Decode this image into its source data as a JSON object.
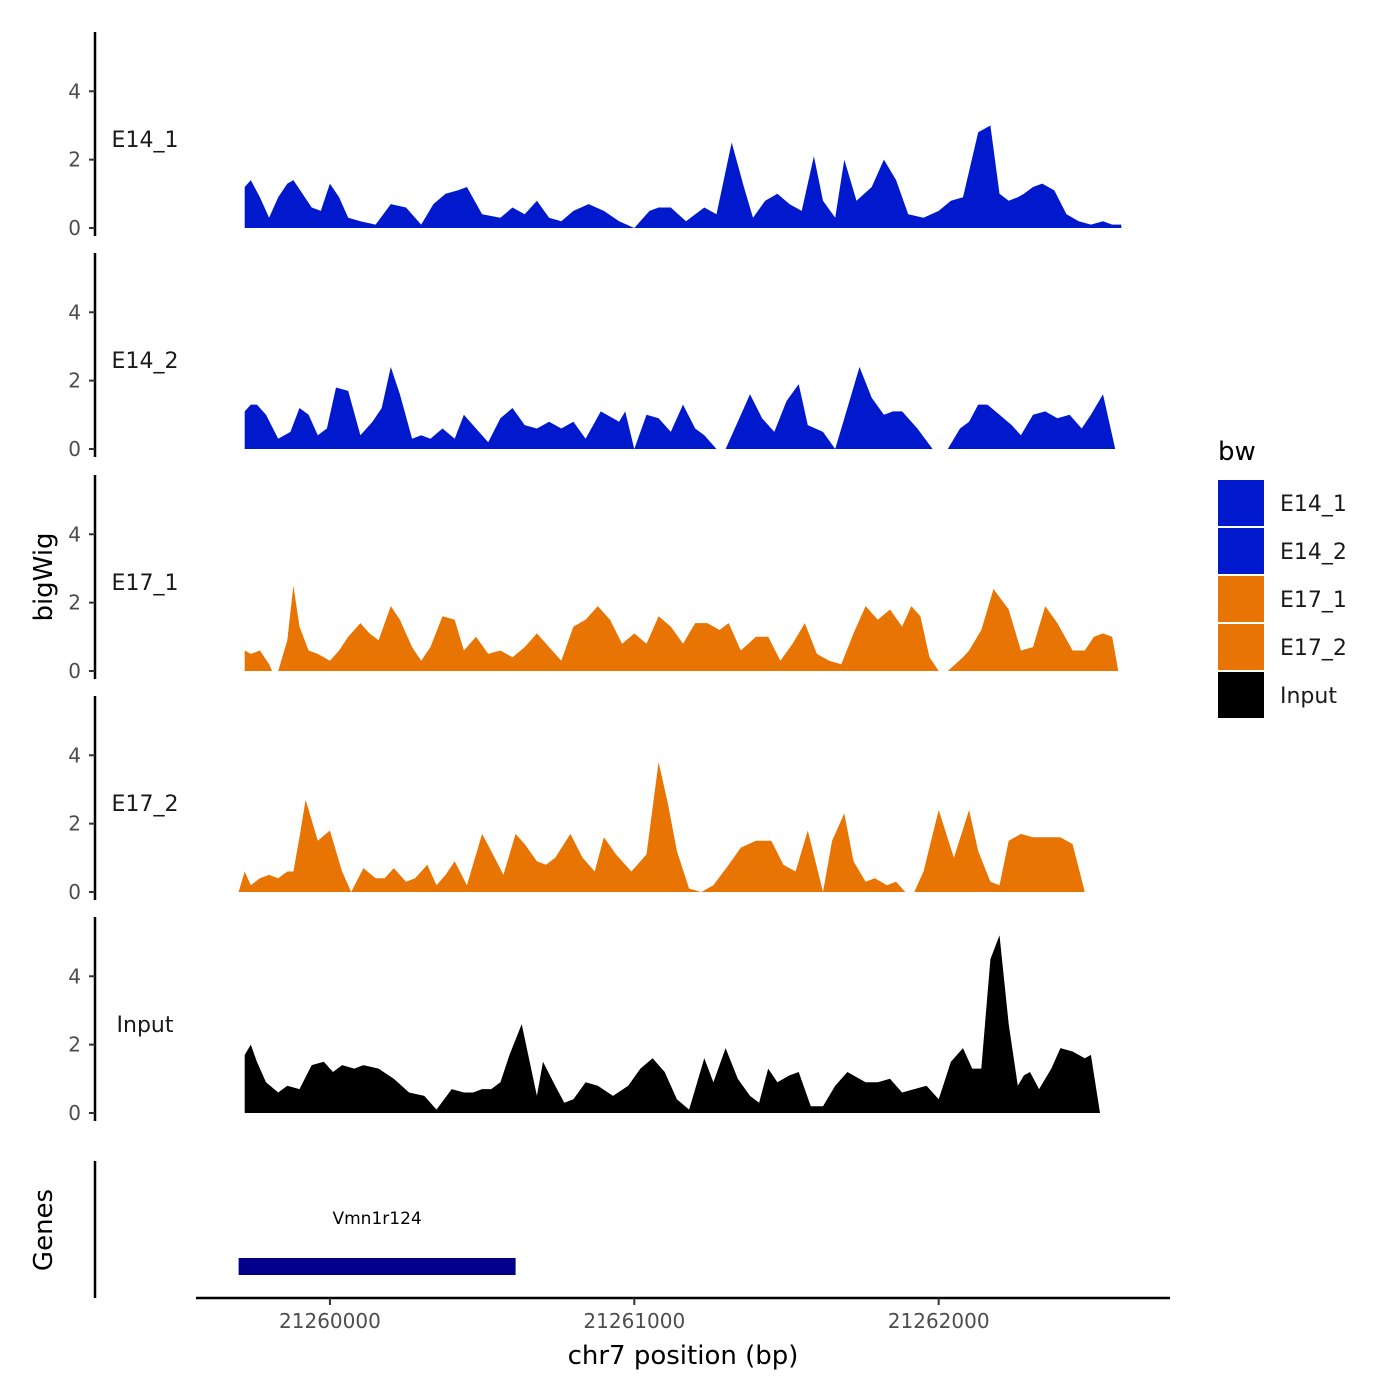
{
  "chart_data": {
    "type": "area",
    "chromosome": "chr7",
    "xlabel": "chr7 position (bp)",
    "ylabel": "bigWig",
    "xlim": [
      21259560,
      21262760
    ],
    "x_ticks": [
      21260000,
      21261000,
      21262000
    ],
    "x_tick_labels": [
      "21260000",
      "21261000",
      "21262000"
    ],
    "ylim": [
      0,
      5.5
    ],
    "y_ticks": [
      0,
      2,
      4
    ],
    "y_tick_labels": [
      "0",
      "2",
      "4"
    ],
    "legend": {
      "title": "bw",
      "position": "right",
      "entries": [
        {
          "label": "E14_1",
          "color": "#0019CC"
        },
        {
          "label": "E14_2",
          "color": "#0019CC"
        },
        {
          "label": "E17_1",
          "color": "#E87503"
        },
        {
          "label": "E17_2",
          "color": "#E87503"
        },
        {
          "label": "Input",
          "color": "#000000"
        }
      ]
    },
    "tracks": [
      {
        "name": "E14_1",
        "color": "#0019CC",
        "x": [
          21259720,
          21259740,
          21259770,
          21259800,
          21259830,
          21259860,
          21259880,
          21259910,
          21259940,
          21259970,
          21260000,
          21260030,
          21260060,
          21260100,
          21260150,
          21260200,
          21260250,
          21260300,
          21260340,
          21260380,
          21260420,
          21260450,
          21260500,
          21260560,
          21260600,
          21260640,
          21260680,
          21260720,
          21260760,
          21260800,
          21260850,
          21260900,
          21260950,
          21261000,
          21261050,
          21261080,
          21261120,
          21261170,
          21261230,
          21261270,
          21261320,
          21261360,
          21261390,
          21261430,
          21261470,
          21261510,
          21261550,
          21261590,
          21261620,
          21261660,
          21261690,
          21261730,
          21261780,
          21261820,
          21261860,
          21261900,
          21261950,
          21262000,
          21262040,
          21262080,
          21262130,
          21262170,
          21262200,
          21262230,
          21262260,
          21262280,
          21262310,
          21262340,
          21262380,
          21262420,
          21262460,
          21262500,
          21262540,
          21262570,
          21262600
        ],
        "y": [
          1.2,
          1.4,
          0.9,
          0.3,
          0.9,
          1.3,
          1.4,
          1.0,
          0.6,
          0.5,
          1.3,
          0.9,
          0.3,
          0.2,
          0.1,
          0.7,
          0.6,
          0.1,
          0.7,
          1.0,
          1.1,
          1.2,
          0.4,
          0.3,
          0.6,
          0.4,
          0.8,
          0.3,
          0.2,
          0.5,
          0.7,
          0.5,
          0.2,
          0.0,
          0.5,
          0.6,
          0.6,
          0.2,
          0.6,
          0.4,
          2.5,
          1.2,
          0.3,
          0.8,
          1.0,
          0.7,
          0.5,
          2.1,
          0.8,
          0.3,
          2.0,
          0.8,
          1.2,
          2.0,
          1.4,
          0.4,
          0.3,
          0.5,
          0.8,
          0.9,
          2.8,
          3.0,
          1.0,
          0.8,
          0.9,
          1.0,
          1.2,
          1.3,
          1.1,
          0.4,
          0.2,
          0.1,
          0.2,
          0.1,
          0.1
        ]
      },
      {
        "name": "E14_2",
        "color": "#0019CC",
        "x": [
          21259720,
          21259740,
          21259760,
          21259790,
          21259830,
          21259870,
          21259900,
          21259930,
          21259960,
          21259990,
          21260020,
          21260060,
          21260100,
          21260140,
          21260170,
          21260200,
          21260230,
          21260270,
          21260300,
          21260330,
          21260370,
          21260410,
          21260440,
          21260480,
          21260520,
          21260560,
          21260600,
          21260640,
          21260680,
          21260720,
          21260760,
          21260800,
          21260840,
          21260890,
          21260950,
          21260970,
          21261000,
          21261040,
          21261080,
          21261120,
          21261160,
          21261200,
          21261230,
          21261270,
          21261300,
          21261340,
          21261380,
          21261420,
          21261460,
          21261500,
          21261540,
          21261570,
          21261620,
          21261660,
          21261700,
          21261740,
          21261780,
          21261820,
          21261850,
          21261880,
          21261930,
          21261980,
          21262030,
          21262070,
          21262100,
          21262130,
          21262160,
          21262200,
          21262240,
          21262270,
          21262310,
          21262350,
          21262390,
          21262430,
          21262470,
          21262500,
          21262540,
          21262580
        ],
        "y": [
          1.1,
          1.3,
          1.3,
          1.0,
          0.3,
          0.5,
          1.2,
          1.0,
          0.4,
          0.6,
          1.8,
          1.7,
          0.4,
          0.8,
          1.2,
          2.4,
          1.6,
          0.3,
          0.4,
          0.3,
          0.6,
          0.3,
          1.0,
          0.6,
          0.2,
          0.9,
          1.2,
          0.7,
          0.6,
          0.8,
          0.6,
          0.8,
          0.3,
          1.1,
          0.8,
          1.1,
          0.0,
          1.0,
          0.9,
          0.5,
          1.3,
          0.6,
          0.4,
          0.0,
          0.0,
          0.8,
          1.6,
          0.9,
          0.5,
          1.4,
          1.9,
          0.7,
          0.5,
          0.0,
          1.2,
          2.4,
          1.5,
          1.0,
          1.1,
          1.1,
          0.6,
          0.0,
          0.0,
          0.6,
          0.8,
          1.3,
          1.3,
          1.0,
          0.7,
          0.4,
          1.0,
          1.1,
          0.9,
          1.0,
          0.6,
          1.0,
          1.6,
          0.0
        ]
      },
      {
        "name": "E17_1",
        "color": "#E87503",
        "x": [
          21259720,
          21259740,
          21259770,
          21259800,
          21259810,
          21259830,
          21259860,
          21259880,
          21259900,
          21259930,
          21259960,
          21260000,
          21260030,
          21260060,
          21260100,
          21260130,
          21260160,
          21260200,
          21260230,
          21260270,
          21260300,
          21260330,
          21260370,
          21260410,
          21260440,
          21260480,
          21260520,
          21260560,
          21260600,
          21260640,
          21260680,
          21260720,
          21260760,
          21260800,
          21260840,
          21260880,
          21260920,
          21260960,
          21261000,
          21261040,
          21261080,
          21261120,
          21261160,
          21261200,
          21261240,
          21261280,
          21261310,
          21261350,
          21261400,
          21261440,
          21261480,
          21261520,
          21261560,
          21261600,
          21261640,
          21261680,
          21261720,
          21261760,
          21261800,
          21261840,
          21261880,
          21261910,
          21261940,
          21261970,
          21262000,
          21262030,
          21262080,
          21262100,
          21262140,
          21262180,
          21262230,
          21262270,
          21262310,
          21262350,
          21262390,
          21262440,
          21262480,
          21262510,
          21262540,
          21262570,
          21262590
        ],
        "y": [
          0.6,
          0.5,
          0.6,
          0.2,
          0.0,
          0.0,
          0.9,
          2.5,
          1.3,
          0.6,
          0.5,
          0.3,
          0.6,
          1.0,
          1.4,
          1.1,
          0.9,
          1.9,
          1.5,
          0.7,
          0.3,
          0.7,
          1.6,
          1.5,
          0.6,
          1.0,
          0.5,
          0.6,
          0.4,
          0.7,
          1.1,
          0.7,
          0.3,
          1.3,
          1.5,
          1.9,
          1.5,
          0.8,
          1.1,
          0.8,
          1.6,
          1.3,
          0.8,
          1.4,
          1.4,
          1.2,
          1.4,
          0.6,
          1.0,
          1.0,
          0.3,
          0.8,
          1.4,
          0.5,
          0.3,
          0.2,
          1.1,
          1.9,
          1.5,
          1.8,
          1.3,
          1.9,
          1.6,
          0.4,
          0.0,
          0.0,
          0.4,
          0.6,
          1.2,
          2.4,
          1.8,
          0.6,
          0.7,
          1.9,
          1.4,
          0.6,
          0.6,
          1.0,
          1.1,
          1.0,
          0.0
        ]
      },
      {
        "name": "E17_2",
        "color": "#E87503",
        "x": [
          21259700,
          21259720,
          21259740,
          21259770,
          21259800,
          21259830,
          21259860,
          21259880,
          21259900,
          21259920,
          21259960,
          21260000,
          21260040,
          21260070,
          21260110,
          21260150,
          21260180,
          21260210,
          21260250,
          21260280,
          21260320,
          21260350,
          21260380,
          21260410,
          21260450,
          21260500,
          21260530,
          21260570,
          21260610,
          21260640,
          21260680,
          21260710,
          21260740,
          21260790,
          21260830,
          21260870,
          21260900,
          21260940,
          21260990,
          21261040,
          21261080,
          21261110,
          21261140,
          21261180,
          21261220,
          21261260,
          21261310,
          21261350,
          21261400,
          21261450,
          21261490,
          21261530,
          21261570,
          21261620,
          21261650,
          21261690,
          21261720,
          21261760,
          21261790,
          21261830,
          21261860,
          21261890,
          21261920,
          21261950,
          21262000,
          21262050,
          21262100,
          21262130,
          21262170,
          21262200,
          21262230,
          21262270,
          21262310,
          21262350,
          21262400,
          21262440,
          21262480,
          21262520,
          21262560,
          21262590
        ],
        "y": [
          0.0,
          0.6,
          0.2,
          0.4,
          0.5,
          0.4,
          0.6,
          0.6,
          1.6,
          2.7,
          1.5,
          1.8,
          0.6,
          0.0,
          0.7,
          0.4,
          0.4,
          0.7,
          0.3,
          0.4,
          0.8,
          0.2,
          0.5,
          0.9,
          0.2,
          1.7,
          1.2,
          0.5,
          1.7,
          1.4,
          0.9,
          0.8,
          1.0,
          1.7,
          1.0,
          0.6,
          1.6,
          1.1,
          0.6,
          1.1,
          3.8,
          2.6,
          1.2,
          0.1,
          0.0,
          0.2,
          0.8,
          1.3,
          1.5,
          1.5,
          0.8,
          0.6,
          1.8,
          0.0,
          1.5,
          2.3,
          0.9,
          0.3,
          0.4,
          0.2,
          0.3,
          0.0,
          0.0,
          0.6,
          2.4,
          1.0,
          2.4,
          1.2,
          0.3,
          0.2,
          1.5,
          1.7,
          1.6,
          1.6,
          1.6,
          1.4,
          0.0,
          0.0,
          0.0,
          0.0
        ]
      },
      {
        "name": "Input",
        "color": "#000000",
        "x": [
          21259720,
          21259740,
          21259760,
          21259790,
          21259830,
          21259860,
          21259900,
          21259940,
          21259980,
          21260010,
          21260040,
          21260080,
          21260110,
          21260160,
          21260210,
          21260260,
          21260310,
          21260350,
          21260400,
          21260440,
          21260470,
          21260500,
          21260530,
          21260560,
          21260590,
          21260630,
          21260680,
          21260700,
          21260740,
          21260770,
          21260800,
          21260840,
          21260880,
          21260930,
          21260980,
          21261020,
          21261060,
          21261100,
          21261140,
          21261180,
          21261230,
          21261260,
          21261300,
          21261340,
          21261380,
          21261410,
          21261440,
          21261470,
          21261510,
          21261540,
          21261580,
          21261620,
          21261660,
          21261700,
          21261760,
          21261800,
          21261840,
          21261880,
          21261920,
          21261960,
          21262000,
          21262040,
          21262080,
          21262110,
          21262140,
          21262170,
          21262200,
          21262230,
          21262260,
          21262280,
          21262300,
          21262330,
          21262370,
          21262400,
          21262440,
          21262480,
          21262500,
          21262530,
          21262560,
          21262590
        ],
        "y": [
          1.7,
          2.0,
          1.5,
          0.9,
          0.6,
          0.8,
          0.7,
          1.4,
          1.5,
          1.2,
          1.4,
          1.3,
          1.4,
          1.3,
          1.0,
          0.6,
          0.5,
          0.1,
          0.7,
          0.6,
          0.6,
          0.7,
          0.7,
          0.9,
          1.7,
          2.6,
          0.5,
          1.5,
          0.8,
          0.3,
          0.4,
          0.9,
          0.8,
          0.5,
          0.8,
          1.3,
          1.6,
          1.2,
          0.4,
          0.1,
          1.6,
          0.9,
          1.9,
          1.0,
          0.5,
          0.3,
          1.3,
          0.9,
          1.1,
          1.2,
          0.2,
          0.2,
          0.8,
          1.2,
          0.9,
          0.9,
          1.0,
          0.6,
          0.7,
          0.8,
          0.4,
          1.5,
          1.9,
          1.3,
          1.3,
          4.5,
          5.2,
          2.6,
          0.8,
          1.1,
          1.2,
          0.7,
          1.3,
          1.9,
          1.8,
          1.6,
          1.7,
          0.0,
          0.0,
          0.0
        ]
      }
    ],
    "genes": [
      {
        "name": "Vmn1r124",
        "start": 21259700,
        "end": 21260610,
        "color": "#00008B"
      }
    ],
    "genes_label": "Genes"
  }
}
